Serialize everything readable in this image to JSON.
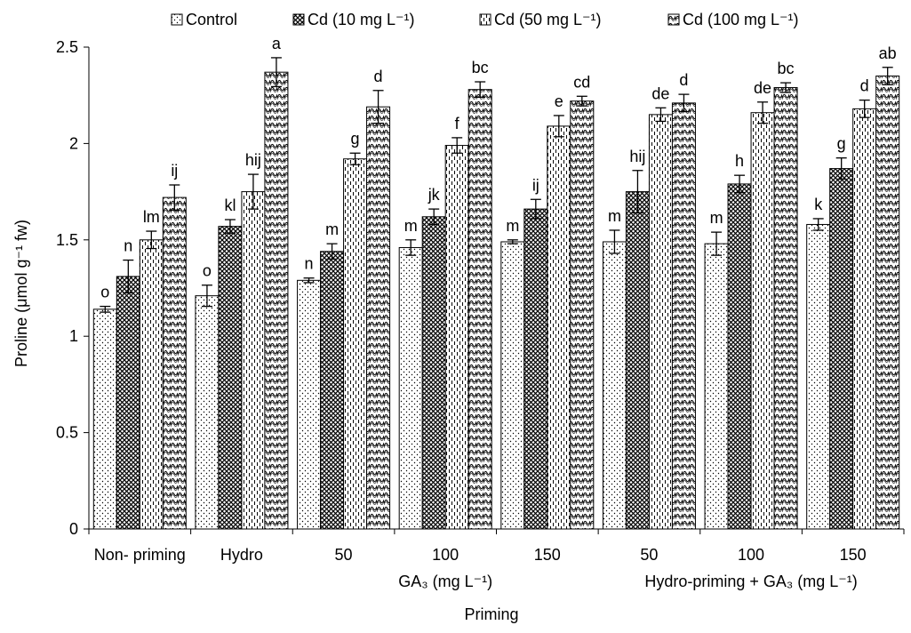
{
  "chart_data": {
    "type": "bar",
    "title": "",
    "xlabel": "Priming",
    "ylabel": "Proline (μmol g⁻¹ fw)",
    "ylim": [
      0,
      2.5
    ],
    "yticks": [
      "0",
      "0.5",
      "1",
      "1.5",
      "2",
      "2.5"
    ],
    "categories": [
      "Non- priming",
      "Hydro",
      "50",
      "100",
      "150",
      "50",
      "100",
      "150"
    ],
    "group_labels": [
      {
        "label": "GA₃ (mg L⁻¹)",
        "spans": [
          2,
          4
        ]
      },
      {
        "label": "Hydro-priming + GA₃ (mg L⁻¹)",
        "spans": [
          5,
          7
        ]
      }
    ],
    "legend_position": "top",
    "grid": false,
    "series": [
      {
        "name": "Control",
        "pattern": "dots",
        "values": [
          1.14,
          1.21,
          1.29,
          1.46,
          1.49,
          1.49,
          1.48,
          1.58
        ],
        "errors": [
          0.015,
          0.055,
          0.012,
          0.04,
          0.01,
          0.06,
          0.06,
          0.03
        ],
        "letters": [
          "o",
          "o",
          "n",
          "m",
          "m",
          "m",
          "m",
          "k"
        ]
      },
      {
        "name": "Cd (10 mg L⁻¹)",
        "pattern": "crosshatch",
        "values": [
          1.31,
          1.57,
          1.44,
          1.62,
          1.66,
          1.75,
          1.79,
          1.87
        ],
        "errors": [
          0.085,
          0.035,
          0.04,
          0.04,
          0.05,
          0.11,
          0.045,
          0.055
        ],
        "letters": [
          "n",
          "kl",
          "m",
          "jk",
          "ij",
          "hij",
          "h",
          "g"
        ]
      },
      {
        "name": "Cd (50 mg L⁻¹)",
        "pattern": "dashes",
        "values": [
          1.5,
          1.75,
          1.92,
          1.99,
          2.09,
          2.15,
          2.16,
          2.18
        ],
        "errors": [
          0.045,
          0.09,
          0.03,
          0.04,
          0.055,
          0.035,
          0.055,
          0.045
        ],
        "letters": [
          "lm",
          "hij",
          "g",
          "f",
          "e",
          "de",
          "de",
          "d"
        ]
      },
      {
        "name": "Cd (100 mg L⁻¹)",
        "pattern": "waves",
        "values": [
          1.72,
          2.37,
          2.19,
          2.28,
          2.22,
          2.21,
          2.29,
          2.35
        ],
        "errors": [
          0.065,
          0.075,
          0.085,
          0.04,
          0.025,
          0.045,
          0.025,
          0.045
        ],
        "letters": [
          "ij",
          "a",
          "d",
          "bc",
          "cd",
          "d",
          "bc",
          "ab"
        ]
      }
    ]
  }
}
